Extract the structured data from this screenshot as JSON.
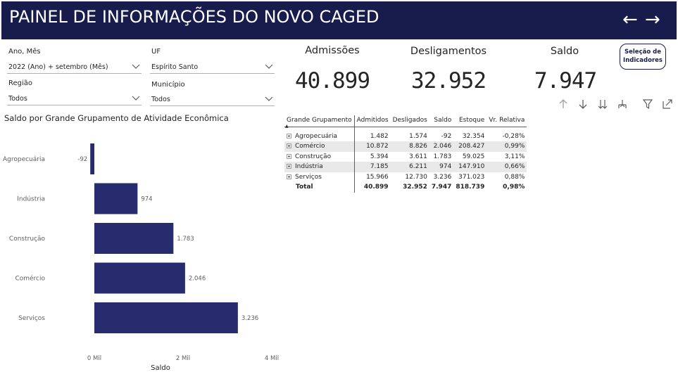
{
  "header": {
    "title": "PAINEL DE INFORMAÇÕES DO NOVO CAGED",
    "back_arrow": "←",
    "forward_arrow": "→"
  },
  "filters": {
    "ano_mes": {
      "label": "Ano, Mês",
      "value": "2022 (Ano) + setembro (Mês)"
    },
    "uf": {
      "label": "UF",
      "value": "Espírito Santo"
    },
    "regiao": {
      "label": "Região",
      "value": "Todos"
    },
    "municipio": {
      "label": "Município",
      "value": "Todos"
    }
  },
  "kpis": {
    "admissoes": {
      "label": "Admissões",
      "value": "40.899"
    },
    "desligamentos": {
      "label": "Desligamentos",
      "value": "32.952"
    },
    "saldo": {
      "label": "Saldo",
      "value": "7.947"
    }
  },
  "selector_button": {
    "line1": "Seleção de",
    "line2": "Indicadores"
  },
  "toolbar_icons": [
    "arrow-up-icon",
    "arrow-down-icon",
    "double-arrow-down-icon",
    "expand-hierarchy-icon",
    "filter-icon",
    "focus-mode-icon"
  ],
  "chart_title": "Saldo por Grande Grupamento de Atividade Econômica",
  "chart_data": {
    "type": "bar",
    "orientation": "horizontal",
    "categories": [
      "Agropecuária",
      "Indústria",
      "Construção",
      "Comércio",
      "Serviços"
    ],
    "values": [
      -92,
      974,
      1783,
      2046,
      3236
    ],
    "value_labels": [
      "-92",
      "974",
      "1.783",
      "2.046",
      "3.236"
    ],
    "xlabel": "Saldo",
    "xticks": [
      0,
      2000,
      4000
    ],
    "xtick_labels": [
      "0 Mil",
      "2 Mil",
      "4 Mil"
    ],
    "xlim": [
      -200,
      4000
    ],
    "bar_color": "#262c6e"
  },
  "table": {
    "headers": [
      "Grande Grupamento",
      "Admitidos",
      "Desligados",
      "Saldo",
      "Estoque",
      "Vr. Relativa"
    ],
    "rows": [
      [
        "Agropecuária",
        "1.482",
        "1.574",
        "-92",
        "32.354",
        "-0,28%"
      ],
      [
        "Comércio",
        "10.872",
        "8.826",
        "2.046",
        "208.427",
        "0,99%"
      ],
      [
        "Construção",
        "5.394",
        "3.611",
        "1.783",
        "59.025",
        "3,11%"
      ],
      [
        "Indústria",
        "7.185",
        "6.211",
        "974",
        "147.910",
        "0,66%"
      ],
      [
        "Serviços",
        "15.966",
        "12.730",
        "3.236",
        "371.023",
        "0,88%"
      ]
    ],
    "total": [
      "Total",
      "40.899",
      "32.952",
      "7.947",
      "818.739",
      "0,98%"
    ]
  },
  "colors": {
    "header_bg": "#171c4d",
    "bar": "#262c6e",
    "row_alt": "#e9e9e9"
  }
}
